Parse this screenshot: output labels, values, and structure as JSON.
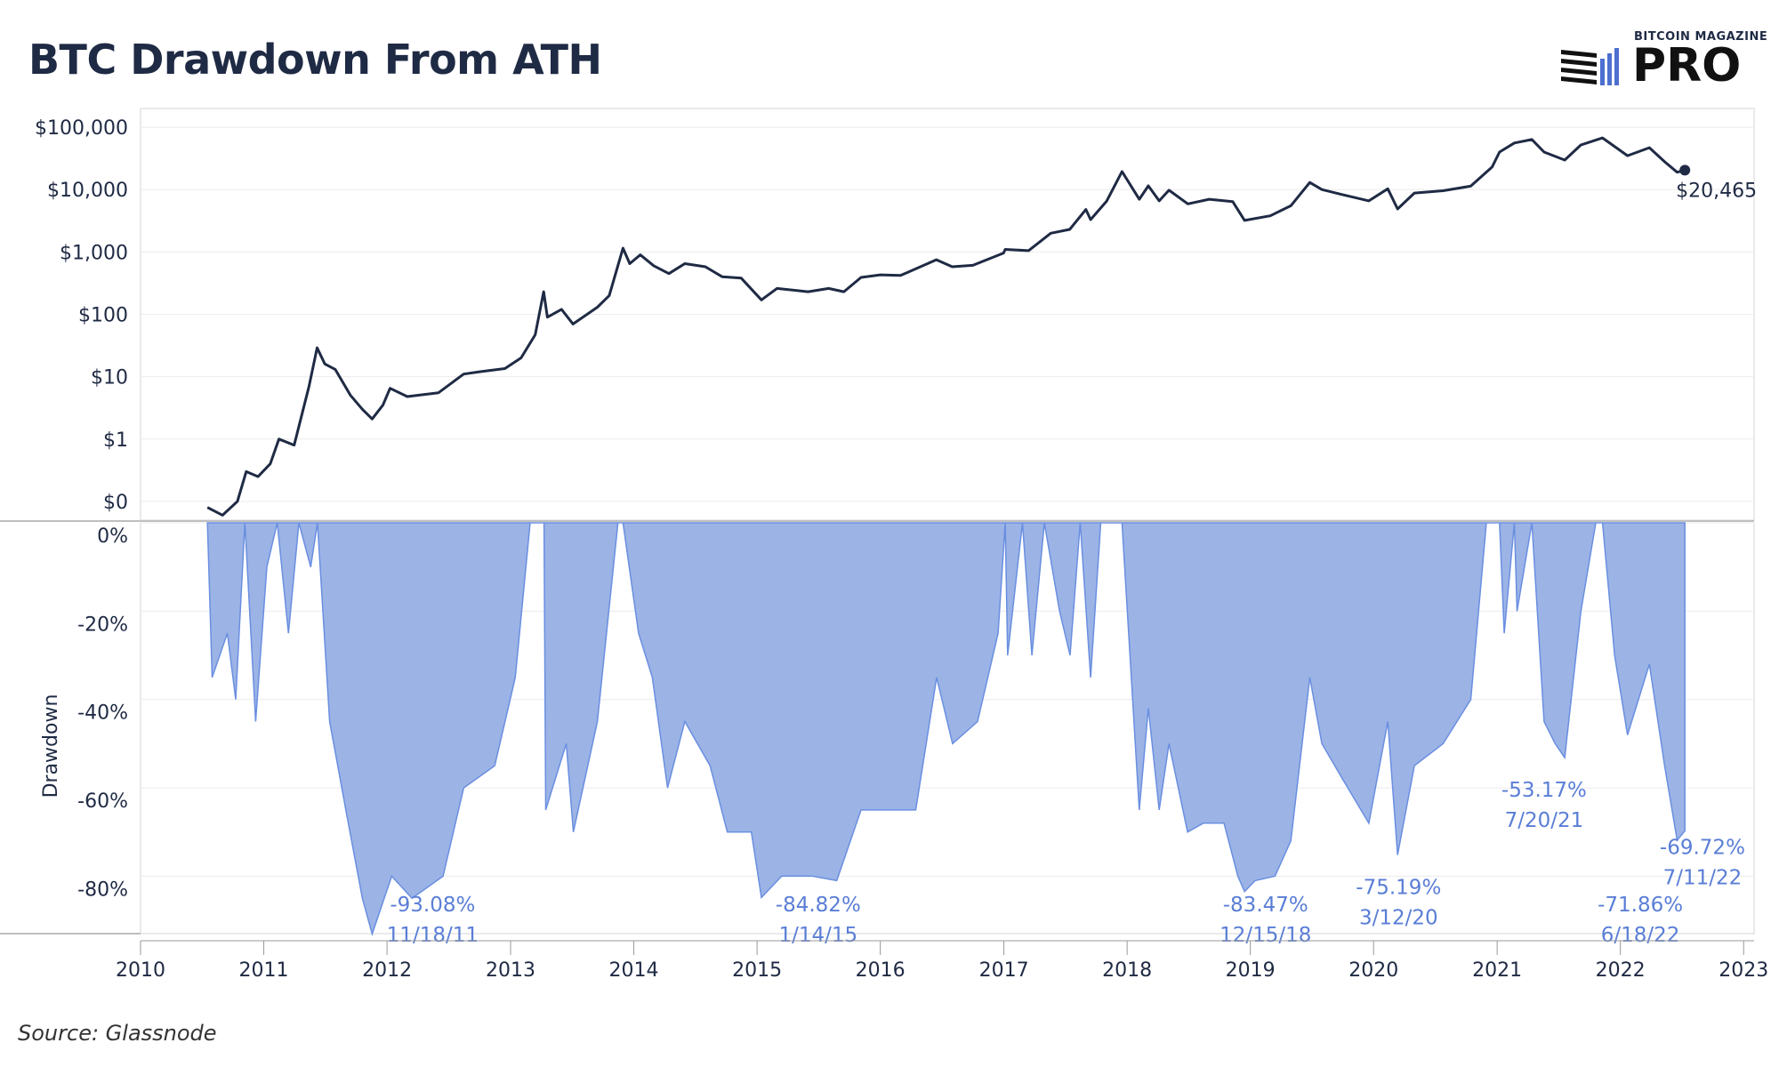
{
  "title": "BTC Drawdown From ATH",
  "logo": {
    "top_text": "BITCOIN MAGAZINE",
    "main_text": "PRO"
  },
  "source": "Source: Glassnode",
  "colors": {
    "price_line": "#1f2a44",
    "drawdown_fill": "#9cb3e6",
    "drawdown_line": "#6a8fe0",
    "annotation": "#5a7ed6"
  },
  "chart_data": [
    {
      "type": "line",
      "yscale": "log",
      "ylim": [
        0.05,
        200000
      ],
      "yticks": [
        {
          "value": 0.1,
          "label": "$0"
        },
        {
          "value": 1,
          "label": "$1"
        },
        {
          "value": 10,
          "label": "$10"
        },
        {
          "value": 100,
          "label": "$100"
        },
        {
          "value": 1000,
          "label": "$1,000"
        },
        {
          "value": 10000,
          "label": "$10,000"
        },
        {
          "value": 100000,
          "label": "$100,000"
        }
      ],
      "series": [
        {
          "points": [
            [
              "2010-07-18",
              0.08
            ],
            [
              "2010-09-01",
              0.06
            ],
            [
              "2010-10-15",
              0.1
            ],
            [
              "2010-11-10",
              0.3
            ],
            [
              "2010-12-15",
              0.25
            ],
            [
              "2011-01-20",
              0.4
            ],
            [
              "2011-02-15",
              1.0
            ],
            [
              "2011-04-01",
              0.8
            ],
            [
              "2011-05-15",
              7
            ],
            [
              "2011-06-08",
              29
            ],
            [
              "2011-07-01",
              16
            ],
            [
              "2011-08-01",
              13
            ],
            [
              "2011-09-15",
              5
            ],
            [
              "2011-10-20",
              3
            ],
            [
              "2011-11-18",
              2.1
            ],
            [
              "2011-12-20",
              3.5
            ],
            [
              "2012-01-10",
              6.5
            ],
            [
              "2012-03-01",
              4.8
            ],
            [
              "2012-06-01",
              5.5
            ],
            [
              "2012-08-15",
              11
            ],
            [
              "2012-10-01",
              12
            ],
            [
              "2012-12-15",
              13.5
            ],
            [
              "2013-02-01",
              20
            ],
            [
              "2013-03-15",
              47
            ],
            [
              "2013-04-09",
              230
            ],
            [
              "2013-04-20",
              90
            ],
            [
              "2013-06-01",
              120
            ],
            [
              "2013-07-05",
              70
            ],
            [
              "2013-09-15",
              130
            ],
            [
              "2013-10-20",
              200
            ],
            [
              "2013-11-30",
              1150
            ],
            [
              "2013-12-20",
              650
            ],
            [
              "2014-01-20",
              900
            ],
            [
              "2014-03-01",
              600
            ],
            [
              "2014-04-15",
              450
            ],
            [
              "2014-06-01",
              650
            ],
            [
              "2014-08-01",
              580
            ],
            [
              "2014-09-20",
              400
            ],
            [
              "2014-11-15",
              380
            ],
            [
              "2015-01-14",
              170
            ],
            [
              "2015-03-01",
              260
            ],
            [
              "2015-06-01",
              230
            ],
            [
              "2015-08-01",
              260
            ],
            [
              "2015-09-15",
              230
            ],
            [
              "2015-11-05",
              390
            ],
            [
              "2016-01-01",
              430
            ],
            [
              "2016-03-01",
              420
            ],
            [
              "2016-06-15",
              750
            ],
            [
              "2016-08-01",
              580
            ],
            [
              "2016-10-01",
              610
            ],
            [
              "2016-12-31",
              960
            ],
            [
              "2017-01-05",
              1100
            ],
            [
              "2017-03-15",
              1050
            ],
            [
              "2017-05-20",
              2000
            ],
            [
              "2017-07-15",
              2300
            ],
            [
              "2017-09-01",
              4800
            ],
            [
              "2017-09-15",
              3300
            ],
            [
              "2017-11-01",
              6500
            ],
            [
              "2017-12-17",
              19500
            ],
            [
              "2018-02-06",
              7000
            ],
            [
              "2018-03-05",
              11500
            ],
            [
              "2018-04-06",
              6600
            ],
            [
              "2018-05-05",
              9800
            ],
            [
              "2018-06-30",
              5900
            ],
            [
              "2018-09-01",
              7000
            ],
            [
              "2018-11-10",
              6400
            ],
            [
              "2018-12-15",
              3200
            ],
            [
              "2019-03-01",
              3800
            ],
            [
              "2019-05-01",
              5500
            ],
            [
              "2019-06-26",
              13000
            ],
            [
              "2019-08-01",
              10000
            ],
            [
              "2019-10-01",
              8300
            ],
            [
              "2019-12-18",
              6600
            ],
            [
              "2020-02-12",
              10300
            ],
            [
              "2020-03-12",
              4900
            ],
            [
              "2020-05-01",
              8800
            ],
            [
              "2020-07-25",
              9600
            ],
            [
              "2020-10-15",
              11400
            ],
            [
              "2020-12-17",
              23000
            ],
            [
              "2021-01-08",
              40000
            ],
            [
              "2021-02-21",
              56000
            ],
            [
              "2021-04-14",
              63500
            ],
            [
              "2021-05-20",
              40000
            ],
            [
              "2021-07-20",
              29800
            ],
            [
              "2021-09-06",
              52000
            ],
            [
              "2021-11-09",
              67500
            ],
            [
              "2022-01-22",
              35000
            ],
            [
              "2022-03-28",
              47000
            ],
            [
              "2022-05-12",
              28000
            ],
            [
              "2022-06-18",
              19000
            ],
            [
              "2022-07-11",
              20465
            ]
          ]
        }
      ],
      "last_label": "$20,465"
    },
    {
      "type": "area",
      "ylabel": "Drawdown",
      "ylim": [
        -0.93,
        0.0
      ],
      "yticks": [
        {
          "value": 0,
          "label": "0%"
        },
        {
          "value": -0.2,
          "label": "-20%"
        },
        {
          "value": -0.4,
          "label": "-40%"
        },
        {
          "value": -0.6,
          "label": "-60%"
        },
        {
          "value": -0.8,
          "label": "-80%"
        }
      ],
      "series": [
        {
          "name": "Drawdown",
          "points": [
            [
              "2010-07-18",
              0
            ],
            [
              "2010-08-01",
              -0.35
            ],
            [
              "2010-09-15",
              -0.25
            ],
            [
              "2010-10-10",
              -0.4
            ],
            [
              "2010-11-06",
              0
            ],
            [
              "2010-12-08",
              -0.45
            ],
            [
              "2011-01-10",
              -0.1
            ],
            [
              "2011-02-10",
              0
            ],
            [
              "2011-03-15",
              -0.25
            ],
            [
              "2011-04-15",
              0
            ],
            [
              "2011-05-20",
              -0.1
            ],
            [
              "2011-06-09",
              0
            ],
            [
              "2011-07-15",
              -0.45
            ],
            [
              "2011-09-01",
              -0.65
            ],
            [
              "2011-10-20",
              -0.85
            ],
            [
              "2011-11-18",
              -0.9308
            ],
            [
              "2012-01-15",
              -0.8
            ],
            [
              "2012-03-15",
              -0.85
            ],
            [
              "2012-06-15",
              -0.8
            ],
            [
              "2012-08-15",
              -0.6
            ],
            [
              "2012-11-15",
              -0.55
            ],
            [
              "2013-01-15",
              -0.35
            ],
            [
              "2013-02-28",
              0
            ],
            [
              "2013-04-10",
              0
            ],
            [
              "2013-04-15",
              -0.65
            ],
            [
              "2013-06-15",
              -0.5
            ],
            [
              "2013-07-06",
              -0.7
            ],
            [
              "2013-09-15",
              -0.45
            ],
            [
              "2013-11-15",
              0
            ],
            [
              "2013-11-30",
              0
            ],
            [
              "2014-01-15",
              -0.25
            ],
            [
              "2014-02-25",
              -0.35
            ],
            [
              "2014-04-11",
              -0.6
            ],
            [
              "2014-06-01",
              -0.45
            ],
            [
              "2014-08-15",
              -0.55
            ],
            [
              "2014-10-05",
              -0.7
            ],
            [
              "2014-12-15",
              -0.7
            ],
            [
              "2015-01-14",
              -0.8482
            ],
            [
              "2015-03-15",
              -0.8
            ],
            [
              "2015-06-15",
              -0.8
            ],
            [
              "2015-08-25",
              -0.81
            ],
            [
              "2015-11-05",
              -0.65
            ],
            [
              "2016-01-15",
              -0.65
            ],
            [
              "2016-04-15",
              -0.65
            ],
            [
              "2016-06-16",
              -0.35
            ],
            [
              "2016-08-02",
              -0.5
            ],
            [
              "2016-10-15",
              -0.45
            ],
            [
              "2016-12-15",
              -0.25
            ],
            [
              "2017-01-05",
              0
            ],
            [
              "2017-01-12",
              -0.3
            ],
            [
              "2017-02-25",
              0
            ],
            [
              "2017-03-25",
              -0.3
            ],
            [
              "2017-05-01",
              0
            ],
            [
              "2017-06-15",
              -0.2
            ],
            [
              "2017-07-16",
              -0.3
            ],
            [
              "2017-08-15",
              0
            ],
            [
              "2017-09-15",
              -0.35
            ],
            [
              "2017-10-15",
              0
            ],
            [
              "2017-12-17",
              0
            ],
            [
              "2018-02-06",
              -0.65
            ],
            [
              "2018-03-05",
              -0.42
            ],
            [
              "2018-04-06",
              -0.65
            ],
            [
              "2018-05-05",
              -0.5
            ],
            [
              "2018-06-29",
              -0.7
            ],
            [
              "2018-08-15",
              -0.68
            ],
            [
              "2018-10-15",
              -0.68
            ],
            [
              "2018-11-25",
              -0.8
            ],
            [
              "2018-12-15",
              -0.8347
            ],
            [
              "2019-01-15",
              -0.81
            ],
            [
              "2019-03-15",
              -0.8
            ],
            [
              "2019-05-01",
              -0.72
            ],
            [
              "2019-06-26",
              -0.35
            ],
            [
              "2019-08-01",
              -0.5
            ],
            [
              "2019-10-01",
              -0.58
            ],
            [
              "2019-12-18",
              -0.68
            ],
            [
              "2020-02-12",
              -0.45
            ],
            [
              "2020-03-12",
              -0.7519
            ],
            [
              "2020-05-01",
              -0.55
            ],
            [
              "2020-07-25",
              -0.5
            ],
            [
              "2020-10-15",
              -0.4
            ],
            [
              "2020-11-30",
              0
            ],
            [
              "2021-01-08",
              0
            ],
            [
              "2021-01-22",
              -0.25
            ],
            [
              "2021-02-21",
              0
            ],
            [
              "2021-03-01",
              -0.2
            ],
            [
              "2021-04-14",
              0
            ],
            [
              "2021-05-20",
              -0.45
            ],
            [
              "2021-06-22",
              -0.5
            ],
            [
              "2021-07-20",
              -0.5317
            ],
            [
              "2021-09-06",
              -0.2
            ],
            [
              "2021-10-20",
              0
            ],
            [
              "2021-11-09",
              0
            ],
            [
              "2021-12-15",
              -0.3
            ],
            [
              "2022-01-22",
              -0.48
            ],
            [
              "2022-03-28",
              -0.32
            ],
            [
              "2022-05-12",
              -0.55
            ],
            [
              "2022-06-18",
              -0.7186
            ],
            [
              "2022-07-11",
              -0.6972
            ]
          ]
        }
      ],
      "annotations": [
        {
          "value": "-93.08%",
          "date": "11/18/11",
          "at": [
            "2012-05-15",
            -0.88
          ]
        },
        {
          "value": "-84.82%",
          "date": "1/14/15",
          "at": [
            "2015-07-01",
            -0.88
          ]
        },
        {
          "value": "-83.47%",
          "date": "12/15/18",
          "at": [
            "2019-02-15",
            -0.88
          ]
        },
        {
          "value": "-75.19%",
          "date": "3/12/20",
          "at": [
            "2020-03-15",
            -0.84
          ]
        },
        {
          "value": "-53.17%",
          "date": "7/20/21",
          "at": [
            "2021-05-20",
            -0.62
          ]
        },
        {
          "value": "-71.86%",
          "date": "6/18/22",
          "at": [
            "2022-03-01",
            -0.88
          ]
        },
        {
          "value": "-69.72%",
          "date": "7/11/22",
          "at": [
            "2022-09-01",
            -0.75
          ]
        }
      ]
    }
  ],
  "x_axis": {
    "type": "date",
    "xlim": [
      "2010-01-01",
      "2023-02-01"
    ],
    "ticks": [
      "2010",
      "2011",
      "2012",
      "2013",
      "2014",
      "2015",
      "2016",
      "2017",
      "2018",
      "2019",
      "2020",
      "2021",
      "2022",
      "2023"
    ]
  }
}
